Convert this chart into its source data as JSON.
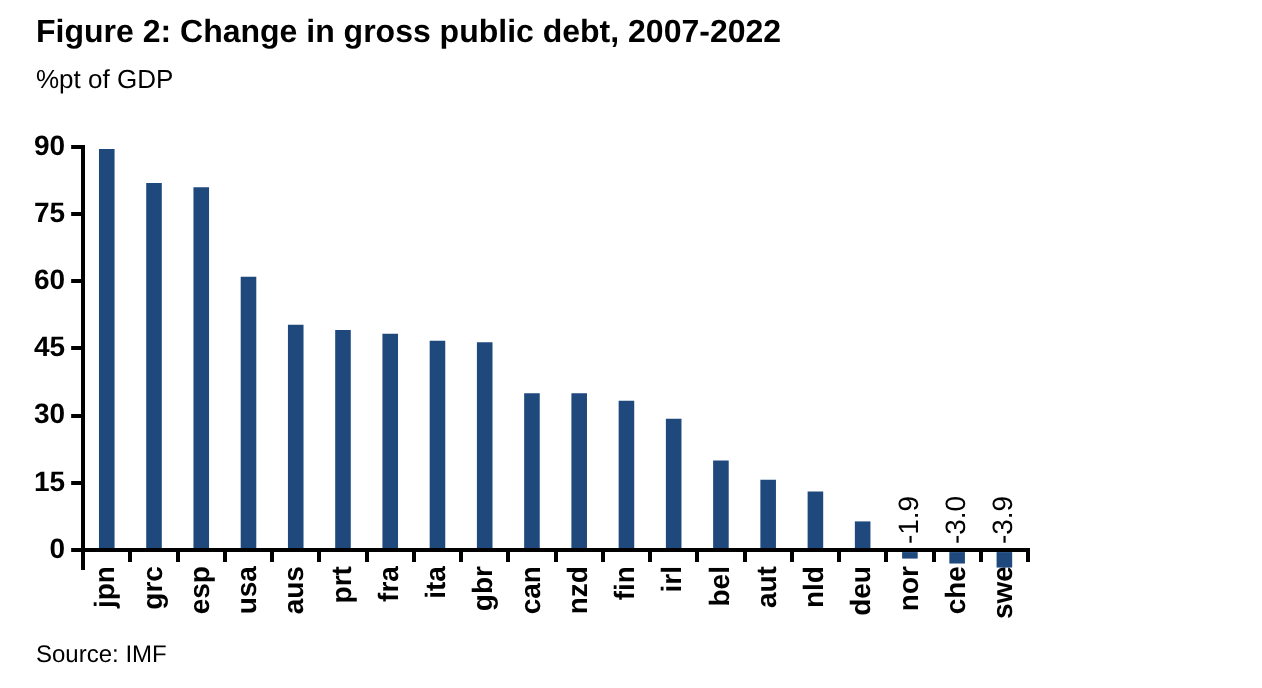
{
  "chart_data": {
    "type": "bar",
    "title": "Figure 2: Change in gross public debt, 2007-2022",
    "subtitle": "%pt of GDP",
    "categories": [
      "jpn",
      "grc",
      "esp",
      "usa",
      "aus",
      "prt",
      "fra",
      "ita",
      "gbr",
      "can",
      "nzd",
      "fin",
      "irl",
      "bel",
      "aut",
      "nld",
      "deu",
      "nor",
      "che",
      "swe"
    ],
    "values": [
      89.5,
      81.9,
      81.0,
      61.0,
      50.3,
      49.1,
      48.3,
      46.7,
      46.4,
      35.0,
      35.0,
      33.3,
      29.3,
      20.0,
      15.7,
      13.1,
      6.4,
      -1.9,
      -3.0,
      -3.9
    ],
    "value_labels": [
      null,
      null,
      null,
      null,
      null,
      null,
      null,
      null,
      null,
      null,
      null,
      null,
      null,
      null,
      null,
      null,
      null,
      "-1.9",
      "-3.0",
      "-3.9"
    ],
    "color": "#1f497d",
    "ylim": [
      -4,
      90
    ],
    "yticks": [
      0,
      15,
      30,
      45,
      60,
      75,
      90
    ],
    "grid": false,
    "legend": false,
    "annotations": [
      "Source: IMF"
    ]
  }
}
